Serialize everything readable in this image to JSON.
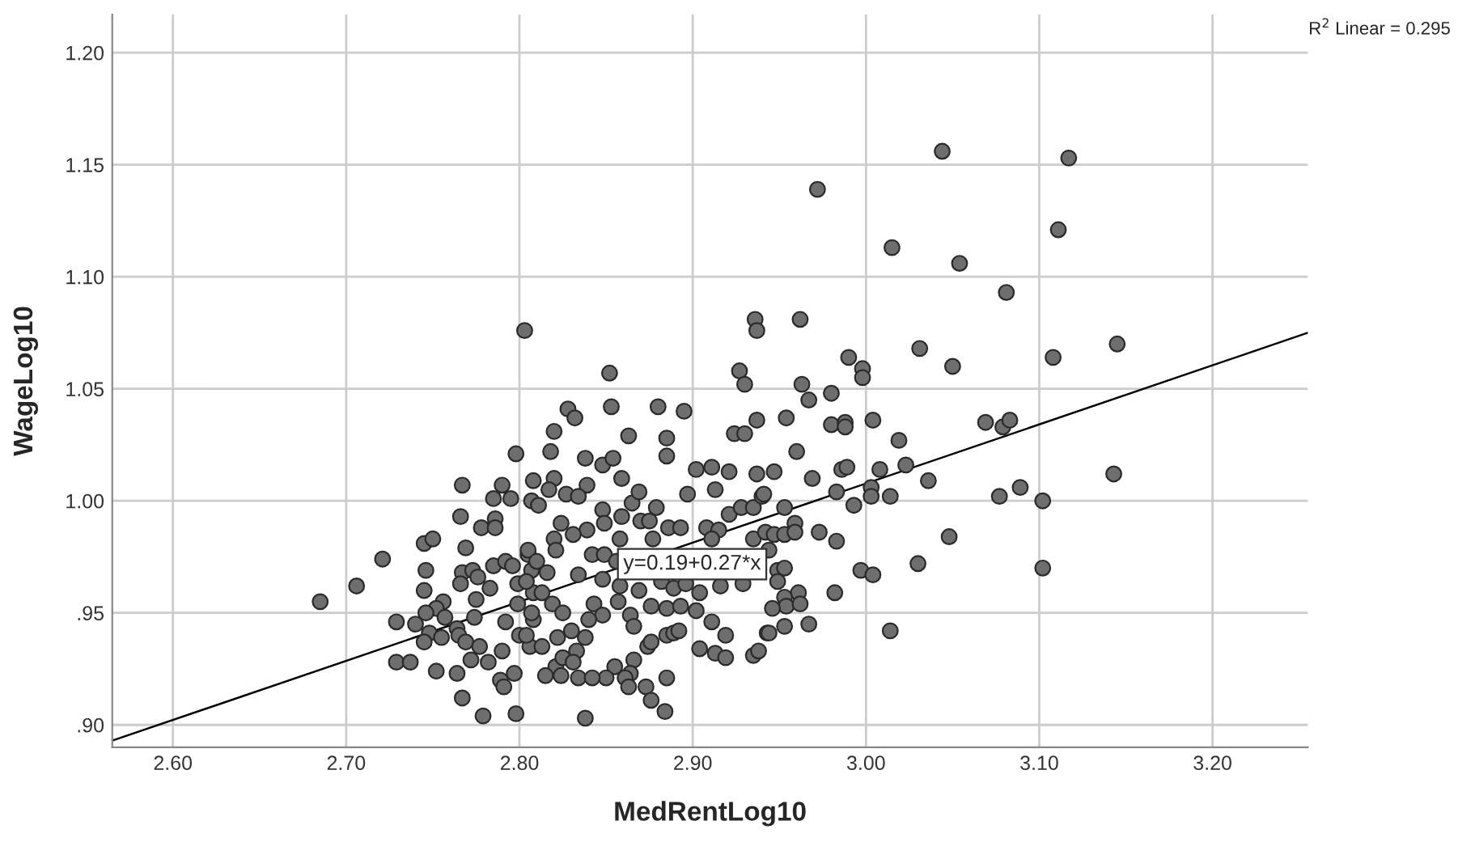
{
  "chart_data": {
    "type": "scatter",
    "xlabel": "MedRentLog10",
    "ylabel": "WageLog10",
    "annotations": [
      "y=0.19+0.27*x",
      "R$^{2}$ Linear = 0.295"
    ],
    "xlim": [
      2.565,
      3.255
    ],
    "ylim": [
      0.89,
      1.217
    ],
    "xticks": [
      {
        "value": 2.6,
        "label": "2.60"
      },
      {
        "value": 2.7,
        "label": "2.70"
      },
      {
        "value": 2.8,
        "label": "2.80"
      },
      {
        "value": 2.9,
        "label": "2.90"
      },
      {
        "value": 3.0,
        "label": "3.00"
      },
      {
        "value": 3.1,
        "label": "3.10"
      },
      {
        "value": 3.2,
        "label": "3.20"
      }
    ],
    "yticks": [
      {
        "value": 0.9,
        "label": ".90"
      },
      {
        "value": 0.95,
        "label": ".95"
      },
      {
        "value": 1.0,
        "label": "1.00"
      },
      {
        "value": 1.05,
        "label": "1.05"
      },
      {
        "value": 1.1,
        "label": "1.10"
      },
      {
        "value": 1.15,
        "label": "1.15"
      },
      {
        "value": 1.2,
        "label": "1.20"
      }
    ],
    "grid": true,
    "legend": false,
    "series": [
      {
        "color": "#6e6e6e",
        "marker": "circle",
        "x": [
          2.803,
          2.798,
          2.767,
          2.79,
          2.785,
          2.795,
          2.766,
          2.786,
          2.778,
          2.786,
          2.745,
          2.75,
          2.721,
          2.769,
          2.746,
          2.767,
          2.773,
          2.776,
          2.766,
          2.785,
          2.792,
          2.706,
          2.685,
          2.745,
          2.783,
          2.775,
          2.756,
          2.752,
          2.746,
          2.729,
          2.74,
          2.757,
          2.774,
          2.792,
          2.764,
          2.748,
          2.755,
          2.745,
          2.765,
          2.769,
          2.777,
          2.79,
          2.8,
          2.806,
          2.772,
          2.782,
          2.729,
          2.737,
          2.752,
          2.764,
          2.797,
          2.789,
          2.791,
          2.767,
          2.779,
          2.798,
          2.796,
          2.799,
          2.805,
          2.807,
          2.808,
          2.799,
          2.808,
          2.852,
          2.936,
          2.937,
          2.927,
          2.93,
          2.828,
          2.832,
          2.853,
          2.88,
          2.895,
          2.937,
          2.924,
          2.93,
          2.82,
          2.863,
          2.885,
          2.818,
          2.838,
          2.848,
          2.854,
          2.885,
          2.902,
          2.911,
          2.921,
          2.937,
          2.808,
          2.82,
          2.839,
          2.859,
          2.817,
          2.827,
          2.834,
          2.807,
          2.811,
          2.865,
          2.869,
          2.879,
          2.897,
          2.913,
          2.921,
          2.928,
          2.935,
          2.94,
          2.848,
          2.849,
          2.859,
          2.87,
          2.875,
          2.886,
          2.893,
          2.908,
          2.915,
          2.824,
          2.839,
          2.831,
          2.82,
          2.821,
          2.858,
          2.877,
          2.911,
          2.935,
          2.942,
          2.842,
          2.849,
          2.856,
          2.848,
          2.834,
          2.816,
          2.858,
          2.869,
          2.882,
          2.889,
          2.896,
          2.916,
          2.929,
          2.857,
          2.876,
          2.885,
          2.893,
          2.904,
          2.902,
          2.843,
          2.848,
          2.84,
          2.864,
          2.866,
          2.911,
          2.919,
          2.943,
          2.885,
          2.889,
          2.892,
          2.874,
          2.876,
          2.904,
          2.913,
          2.919,
          2.935,
          2.855,
          2.866,
          2.864,
          2.861,
          2.85,
          2.838,
          2.833,
          2.822,
          2.821,
          2.815,
          2.824,
          2.834,
          2.842,
          2.863,
          2.873,
          2.876,
          2.884,
          2.838,
          2.885,
          2.805,
          2.81,
          2.804,
          2.813,
          2.819,
          2.807,
          2.825,
          2.83,
          2.813,
          2.825,
          2.831,
          2.804,
          3.044,
          3.117,
          2.972,
          3.111,
          3.015,
          3.054,
          3.081,
          2.962,
          3.145,
          3.031,
          3.108,
          2.99,
          3.05,
          2.998,
          2.998,
          2.963,
          2.98,
          2.967,
          2.954,
          2.98,
          2.988,
          2.988,
          3.004,
          3.019,
          3.069,
          3.079,
          3.083,
          2.96,
          2.947,
          2.969,
          2.986,
          2.989,
          3.008,
          3.023,
          3.036,
          3.143,
          2.941,
          2.983,
          3.003,
          3.003,
          3.014,
          3.077,
          3.089,
          3.102,
          2.953,
          2.993,
          2.959,
          2.947,
          2.953,
          2.959,
          2.973,
          2.983,
          3.048,
          2.944,
          2.949,
          2.953,
          2.949,
          2.997,
          3.004,
          3.03,
          3.102,
          2.982,
          2.961,
          2.953,
          2.954,
          2.962,
          2.946,
          2.953,
          2.967,
          2.944,
          3.014,
          2.938
        ],
        "values": [
          1.076,
          1.021,
          1.007,
          1.007,
          1.001,
          1.001,
          0.993,
          0.992,
          0.988,
          0.988,
          0.981,
          0.983,
          0.974,
          0.979,
          0.969,
          0.968,
          0.969,
          0.966,
          0.963,
          0.971,
          0.973,
          0.962,
          0.955,
          0.96,
          0.961,
          0.956,
          0.955,
          0.952,
          0.95,
          0.946,
          0.945,
          0.948,
          0.948,
          0.946,
          0.943,
          0.941,
          0.939,
          0.937,
          0.94,
          0.937,
          0.935,
          0.933,
          0.94,
          0.935,
          0.929,
          0.928,
          0.928,
          0.928,
          0.924,
          0.923,
          0.923,
          0.92,
          0.917,
          0.912,
          0.904,
          0.905,
          0.971,
          0.963,
          0.976,
          0.969,
          0.959,
          0.954,
          0.947,
          1.057,
          1.081,
          1.076,
          1.058,
          1.052,
          1.041,
          1.037,
          1.042,
          1.042,
          1.04,
          1.036,
          1.03,
          1.03,
          1.031,
          1.029,
          1.028,
          1.022,
          1.019,
          1.016,
          1.019,
          1.02,
          1.014,
          1.015,
          1.013,
          1.012,
          1.009,
          1.01,
          1.007,
          1.01,
          1.005,
          1.003,
          1.002,
          1.0,
          0.998,
          0.999,
          1.004,
          0.997,
          1.003,
          1.005,
          0.994,
          0.997,
          0.997,
          1.002,
          0.996,
          0.99,
          0.993,
          0.991,
          0.991,
          0.988,
          0.988,
          0.988,
          0.987,
          0.99,
          0.987,
          0.985,
          0.983,
          0.978,
          0.983,
          0.983,
          0.983,
          0.983,
          0.986,
          0.976,
          0.976,
          0.973,
          0.965,
          0.967,
          0.968,
          0.962,
          0.96,
          0.964,
          0.961,
          0.963,
          0.962,
          0.963,
          0.955,
          0.953,
          0.952,
          0.953,
          0.959,
          0.951,
          0.954,
          0.949,
          0.947,
          0.949,
          0.944,
          0.946,
          0.94,
          0.941,
          0.94,
          0.941,
          0.942,
          0.935,
          0.937,
          0.934,
          0.932,
          0.93,
          0.931,
          0.926,
          0.929,
          0.923,
          0.921,
          0.921,
          0.939,
          0.933,
          0.939,
          0.926,
          0.922,
          0.922,
          0.921,
          0.921,
          0.917,
          0.917,
          0.911,
          0.906,
          0.903,
          0.921,
          0.978,
          0.973,
          0.964,
          0.959,
          0.954,
          0.95,
          0.95,
          0.942,
          0.935,
          0.93,
          0.928,
          0.94,
          1.156,
          1.153,
          1.139,
          1.121,
          1.113,
          1.106,
          1.093,
          1.081,
          1.07,
          1.068,
          1.064,
          1.064,
          1.06,
          1.059,
          1.055,
          1.052,
          1.048,
          1.045,
          1.037,
          1.034,
          1.035,
          1.033,
          1.036,
          1.027,
          1.035,
          1.033,
          1.036,
          1.022,
          1.013,
          1.01,
          1.014,
          1.015,
          1.014,
          1.016,
          1.009,
          1.012,
          1.003,
          1.004,
          1.006,
          1.002,
          1.002,
          1.002,
          1.006,
          1.0,
          0.997,
          0.998,
          0.99,
          0.985,
          0.985,
          0.986,
          0.986,
          0.982,
          0.984,
          0.978,
          0.969,
          0.97,
          0.964,
          0.969,
          0.967,
          0.972,
          0.97,
          0.959,
          0.959,
          0.957,
          0.953,
          0.954,
          0.952,
          0.944,
          0.945,
          0.941,
          0.942,
          0.933
        ]
      },
      {
        "type": "line",
        "color": "#000000",
        "x": [
          2.565,
          3.255
        ],
        "values": [
          0.893,
          1.075
        ]
      }
    ]
  }
}
